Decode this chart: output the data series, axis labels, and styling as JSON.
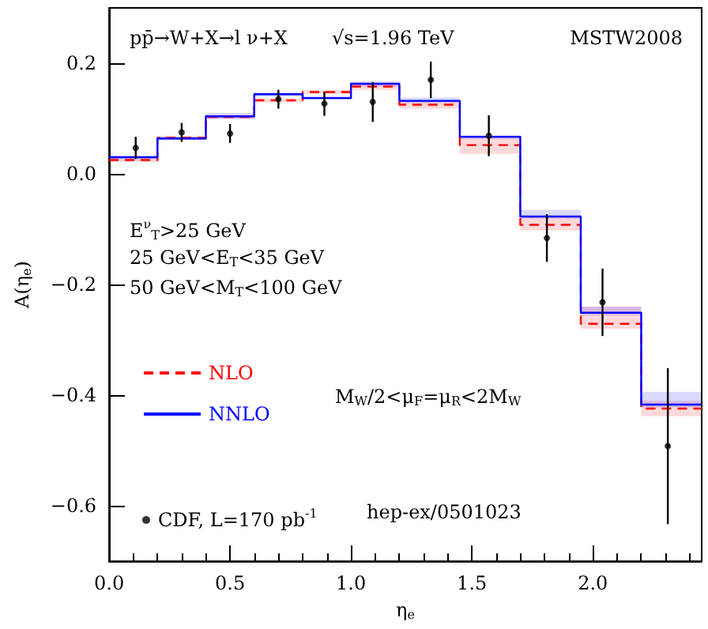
{
  "chart_data": {
    "type": "step",
    "xlabel": "η$_{e}$",
    "ylabel": "A(η$_{e}$)",
    "series": [
      {
        "name": "NLO",
        "type": "step",
        "color": "#ff0000",
        "line_style": "dashed",
        "x": [
          0,
          0.2,
          0.4,
          0.6,
          0.8,
          1.0,
          1.2,
          1.45,
          1.7,
          1.95,
          2.2,
          2.45
        ],
        "values": [
          0.025,
          0.065,
          0.103,
          0.133,
          0.148,
          0.158,
          0.125,
          0.052,
          -0.092,
          -0.271,
          -0.424,
          -0.424
        ],
        "lower": [
          0.021,
          0.061,
          0.099,
          0.129,
          0.144,
          0.152,
          0.118,
          0.036,
          -0.102,
          -0.28,
          -0.438,
          -0.438
        ],
        "upper": [
          0.029,
          0.069,
          0.107,
          0.137,
          0.152,
          0.163,
          0.131,
          0.067,
          -0.076,
          -0.24,
          -0.41,
          -0.41
        ]
      },
      {
        "name": "NNLO",
        "type": "step",
        "color": "#0000ff",
        "line_style": "solid",
        "x": [
          0,
          0.2,
          0.4,
          0.6,
          0.8,
          1.0,
          1.2,
          1.45,
          1.7,
          1.95,
          2.2,
          2.45
        ],
        "values": [
          0.03,
          0.064,
          0.104,
          0.144,
          0.137,
          0.163,
          0.132,
          0.067,
          -0.077,
          -0.251,
          -0.417,
          -0.417
        ],
        "lower": [
          0.027,
          0.061,
          0.1,
          0.14,
          0.134,
          0.158,
          0.128,
          0.063,
          -0.081,
          -0.256,
          -0.422,
          -0.422
        ],
        "upper": [
          0.033,
          0.067,
          0.11,
          0.148,
          0.141,
          0.167,
          0.138,
          0.07,
          -0.065,
          -0.24,
          -0.394,
          -0.394
        ]
      },
      {
        "name": "CDF, L=170 pb$^{-1}$",
        "type": "scatter",
        "color": "#000000",
        "marker": "circle",
        "x": [
          0.11,
          0.3,
          0.5,
          0.7,
          0.89,
          1.09,
          1.33,
          1.57,
          1.81,
          2.04,
          2.31
        ],
        "values": [
          0.047,
          0.075,
          0.073,
          0.135,
          0.127,
          0.13,
          0.17,
          0.069,
          -0.116,
          -0.232,
          -0.492
        ],
        "errors": [
          0.02,
          0.017,
          0.017,
          0.017,
          0.022,
          0.036,
          0.033,
          0.037,
          0.043,
          0.061,
          0.141
        ]
      }
    ],
    "xlim": [
      0,
      2.45
    ],
    "ylim": [
      -0.7,
      0.3
    ],
    "xticks": [
      {
        "value": 0,
        "label": "0.0"
      },
      {
        "value": 0.5,
        "label": "0.5"
      },
      {
        "value": 1,
        "label": "1.0"
      },
      {
        "value": 1.5,
        "label": "1.5"
      },
      {
        "value": 2,
        "label": "2.0"
      }
    ],
    "yticks": [
      {
        "value": -0.6,
        "label": "−0.6"
      },
      {
        "value": -0.4,
        "label": "−0.4"
      },
      {
        "value": -0.2,
        "label": "−0.2"
      },
      {
        "value": 0,
        "label": "0.0"
      },
      {
        "value": 0.2,
        "label": "0.2"
      }
    ],
    "annotations": [
      "pp̄→W+X→l ν+X",
      "√s=1.96 TeV",
      "MSTW2008",
      "E$^{ν}$$_{T}$>25 GeV",
      "25 GeV<E$_{T}$<35 GeV",
      "50 GeV<M$_{T}$<100 GeV",
      "M$_{W}$/2<μ$_{F}$=μ$_{R}$<2M$_{W}$",
      "hep-ex/0501023"
    ],
    "legend": "left",
    "grid": false
  }
}
